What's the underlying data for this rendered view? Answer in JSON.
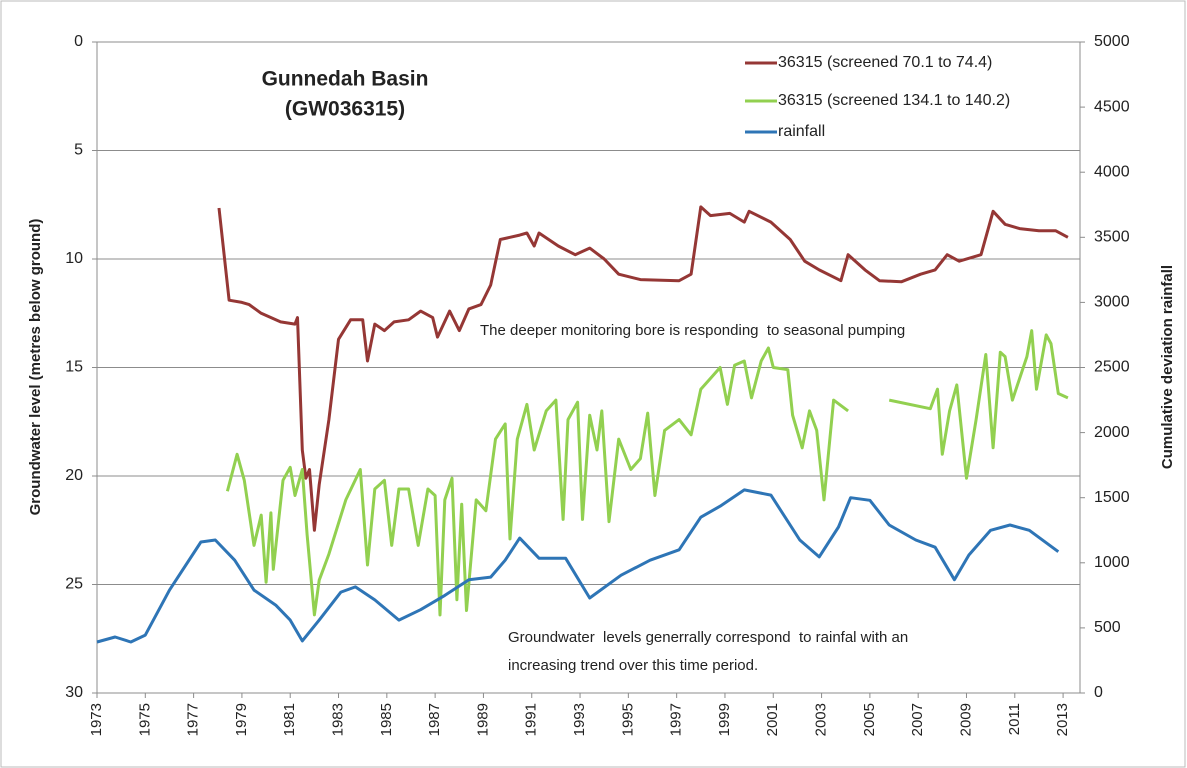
{
  "chart_data": {
    "type": "line",
    "title": "Gunnedah Basin",
    "subtitle": "(GW036315)",
    "y_label": "Groundwater level (metres below ground)",
    "y2_label": "Cumulative deviation rainfall",
    "annotations": [
      "The deeper monitoring bore is responding  to seasonal pumping",
      "Groundwater  levels generrally correspond  to rainfal with an",
      "increasing trend over this time period."
    ],
    "xlim": [
      1973,
      2013.7
    ],
    "xticks": [
      1973,
      1975,
      1977,
      1979,
      1981,
      1983,
      1985,
      1987,
      1989,
      1991,
      1993,
      1995,
      1997,
      1999,
      2001,
      2003,
      2005,
      2007,
      2009,
      2011,
      2013
    ],
    "ylim": [
      0,
      30
    ],
    "y_inverted": true,
    "yticks": [
      0,
      5,
      10,
      15,
      20,
      25,
      30
    ],
    "y2lim": [
      0,
      5000
    ],
    "y2ticks": [
      0,
      500,
      1000,
      1500,
      2000,
      2500,
      3000,
      3500,
      4000,
      4500,
      5000
    ],
    "grid": true,
    "legend": "top-right",
    "series": [
      {
        "name": "36315 (screened 70.1 to 74.4)",
        "color": "#953735",
        "x": [
          1978.05,
          1978.47,
          1979.0,
          1979.3,
          1979.8,
          1980.6,
          1981.2,
          1981.3,
          1981.5,
          1981.65,
          1981.8,
          1982.0,
          1982.2,
          1982.6,
          1983.0,
          1983.5,
          1984.0,
          1984.2,
          1984.5,
          1984.9,
          1985.3,
          1985.9,
          1986.4,
          1986.9,
          1987.1,
          1987.6,
          1988.0,
          1988.4,
          1988.9,
          1989.3,
          1989.7,
          1990.1,
          1990.5,
          1990.8,
          1991.1,
          1991.3,
          1992.1,
          1992.8,
          1993.4,
          1994.0,
          1994.6,
          1995.5,
          1997.1,
          1997.6,
          1998.0,
          1998.4,
          1999.2,
          1999.8,
          2000.0,
          2000.9,
          2001.7,
          2002.3,
          2002.9,
          2003.8,
          2004.1,
          2004.8,
          2005.4,
          2006.3,
          2007.1,
          2007.7,
          2008.2,
          2008.7,
          2009.6,
          2010.1,
          2010.6,
          2011.2,
          2012.0,
          2012.7,
          2013.2
        ],
        "values": [
          7.65,
          11.9,
          12.0,
          12.1,
          12.5,
          12.9,
          13.0,
          12.7,
          18.8,
          20.1,
          19.7,
          22.5,
          20.4,
          17.4,
          13.7,
          12.8,
          12.8,
          14.7,
          13.0,
          13.3,
          12.9,
          12.8,
          12.4,
          12.7,
          13.6,
          12.4,
          13.3,
          12.3,
          12.1,
          11.2,
          9.1,
          9.0,
          8.9,
          8.8,
          9.4,
          8.8,
          9.4,
          9.8,
          9.5,
          10.0,
          10.7,
          10.95,
          11.0,
          10.7,
          7.6,
          8.0,
          7.9,
          8.3,
          7.8,
          8.3,
          9.1,
          10.1,
          10.5,
          11.0,
          9.8,
          10.5,
          11.0,
          11.05,
          10.7,
          10.5,
          9.8,
          10.1,
          9.8,
          7.8,
          8.4,
          8.6,
          8.7,
          8.7,
          9.0
        ]
      },
      {
        "name": "36315 (screened 134.1 to 140.2)",
        "color": "#92d050",
        "x": [
          1978.4,
          1978.8,
          1979.1,
          1979.5,
          1979.8,
          1980.0,
          1980.2,
          1980.3,
          1980.7,
          1981.0,
          1981.2,
          1981.5,
          1981.7,
          1982.0,
          1982.2,
          1982.6,
          1983.3,
          1983.9,
          1984.2,
          1984.5,
          1984.9,
          1985.2,
          1985.5,
          1985.9,
          1986.3,
          1986.7,
          1987.0,
          1987.2,
          1987.4,
          1987.7,
          1987.9,
          1988.1,
          1988.3,
          1988.7,
          1989.1,
          1989.5,
          1989.9,
          1990.1,
          1990.4,
          1990.8,
          1991.1,
          1991.6,
          1992.0,
          1992.3,
          1992.5,
          1992.9,
          1993.1,
          1993.4,
          1993.7,
          1993.9,
          1994.2,
          1994.6,
          1995.1,
          1995.5,
          1995.8,
          1996.1,
          1996.5,
          1997.1,
          1997.6,
          1998.0,
          1998.4,
          1998.8,
          1999.1,
          1999.4,
          1999.8,
          2000.1,
          2000.5,
          2000.8,
          2001.0,
          2001.6,
          2001.8,
          2002.2,
          2002.5,
          2002.8,
          2003.1,
          2003.5,
          2004.1,
          2005.0,
          2005.8,
          2007.5,
          2007.8,
          2008.0,
          2008.3,
          2008.6,
          2009.0,
          2009.4,
          2009.8,
          2010.1,
          2010.4,
          2010.6,
          2010.9,
          2011.5,
          2011.7,
          2011.9,
          2012.3,
          2012.5,
          2012.8,
          2013.2
        ],
        "values": [
          20.7,
          19.0,
          20.2,
          23.2,
          21.8,
          24.9,
          21.7,
          24.3,
          20.2,
          19.6,
          20.9,
          19.7,
          22.7,
          26.4,
          24.8,
          23.6,
          21.1,
          19.7,
          24.1,
          20.6,
          20.2,
          23.2,
          20.6,
          20.6,
          23.2,
          20.6,
          20.9,
          26.4,
          21.1,
          20.1,
          25.7,
          21.3,
          26.2,
          21.1,
          21.6,
          18.3,
          17.6,
          22.9,
          18.3,
          16.7,
          18.8,
          17.0,
          16.5,
          22.0,
          17.4,
          16.6,
          22.0,
          17.2,
          18.8,
          17.0,
          22.1,
          18.3,
          19.7,
          19.2,
          17.1,
          20.9,
          17.9,
          17.4,
          18.1,
          16.0,
          15.5,
          15.0,
          16.7,
          14.9,
          14.7,
          16.4,
          14.7,
          14.1,
          15.0,
          15.1,
          17.2,
          18.7,
          17.0,
          17.9,
          21.1,
          16.5,
          17.0,
          null,
          16.5,
          16.9,
          16.0,
          19.0,
          17.0,
          15.8,
          20.1,
          17.4,
          14.4,
          18.7,
          14.3,
          14.5,
          16.5,
          14.5,
          13.3,
          16.0,
          13.5,
          13.9,
          16.2,
          16.4
        ]
      },
      {
        "name": "rainfall",
        "color": "#2e75b6",
        "axis": "y2",
        "x": [
          1973.0,
          1973.75,
          1974.4,
          1975.0,
          1976.0,
          1977.3,
          1977.9,
          1978.7,
          1979.5,
          1980.4,
          1981.0,
          1981.5,
          1982.2,
          1983.1,
          1983.7,
          1984.5,
          1985.5,
          1986.4,
          1987.4,
          1988.4,
          1989.3,
          1989.9,
          1990.5,
          1991.3,
          1992.4,
          1993.4,
          1994.7,
          1995.9,
          1997.1,
          1998.0,
          1998.8,
          1999.8,
          2000.9,
          2002.1,
          2002.9,
          2003.7,
          2004.2,
          2005.0,
          2005.8,
          2006.9,
          2007.7,
          2008.5,
          2009.1,
          2010.0,
          2010.8,
          2011.6,
          2012.8
        ],
        "values": [
          392,
          430,
          392,
          445,
          790,
          1160,
          1175,
          1020,
          790,
          675,
          560,
          400,
          560,
          775,
          815,
          715,
          560,
          640,
          750,
          870,
          890,
          1020,
          1190,
          1035,
          1035,
          730,
          905,
          1020,
          1100,
          1350,
          1435,
          1560,
          1520,
          1175,
          1045,
          1275,
          1500,
          1480,
          1290,
          1175,
          1120,
          870,
          1060,
          1250,
          1290,
          1250,
          1085
        ]
      }
    ]
  }
}
